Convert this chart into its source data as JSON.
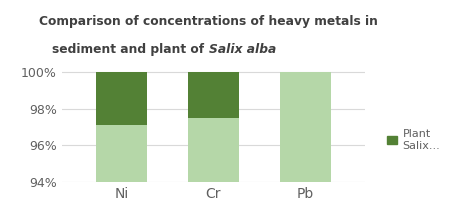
{
  "categories": [
    "Ni",
    "Cr",
    "Pb"
  ],
  "sediment_values": [
    97.1,
    97.5,
    100.0
  ],
  "plant_values": [
    2.9,
    2.5,
    0.0
  ],
  "sediment_color": "#b5d7a8",
  "plant_color": "#538135",
  "ylim": [
    94,
    100.6
  ],
  "yticks": [
    94,
    96,
    98,
    100
  ],
  "ytick_labels": [
    "94%",
    "96%",
    "98%",
    "100%"
  ],
  "title_line1": "Comparison of concentrations of heavy metals in",
  "title_line2_normal": "sediment and plant of ",
  "title_italic": "Salix alba",
  "legend_label_line1": "Plant",
  "legend_label_line2": "Salix...",
  "background_color": "#ffffff",
  "grid_color": "#d9d9d9",
  "title_color": "#404040",
  "tick_color": "#606060"
}
